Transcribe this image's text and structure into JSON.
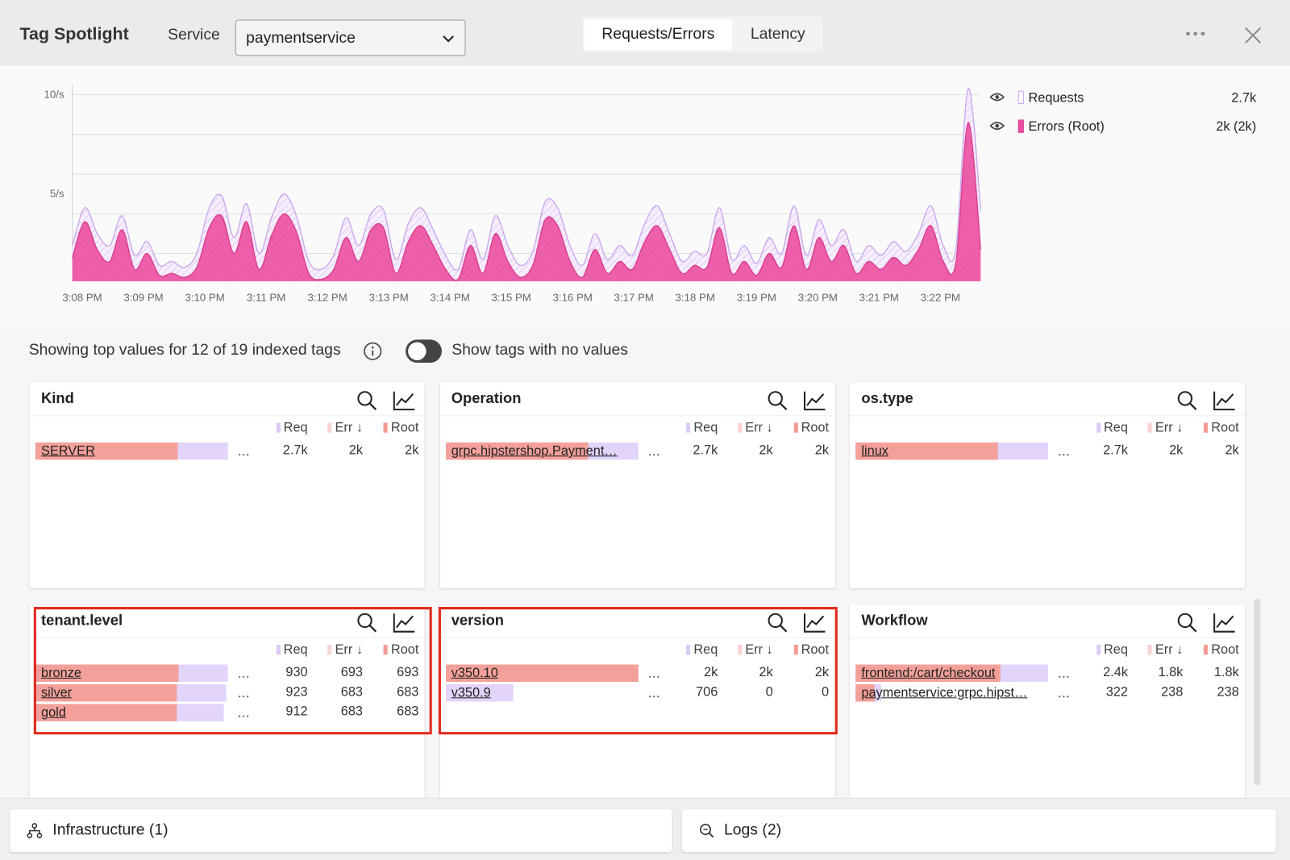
{
  "header": {
    "title": "Tag Spotlight",
    "service_label": "Service",
    "service_value": "paymentservice",
    "tabs": [
      "Requests/Errors",
      "Latency"
    ]
  },
  "chart_data": {
    "type": "area",
    "series": [
      {
        "name": "Requests",
        "color": "#c9a6f0",
        "summary": "2.7k",
        "values": [
          2.4,
          4.3,
          3.0,
          2.4,
          3.9,
          1.9,
          2.6,
          1.4,
          1.6,
          1.3,
          2.0,
          4.3,
          4.9,
          2.8,
          4.5,
          2.0,
          3.8,
          5.0,
          3.9,
          1.6,
          1.2,
          1.9,
          3.8,
          2.4,
          4.0,
          4.2,
          1.7,
          3.5,
          4.3,
          3.2,
          1.9,
          1.2,
          3.2,
          1.7,
          3.9,
          2.4,
          1.4,
          2.1,
          4.6,
          4.3,
          2.4,
          1.4,
          3.0,
          1.7,
          2.4,
          1.9,
          3.5,
          4.4,
          3.0,
          1.6,
          2.1,
          2.0,
          4.3,
          1.7,
          2.4,
          1.5,
          2.8,
          2.0,
          4.4,
          1.9,
          3.7,
          2.4,
          3.2,
          1.6,
          2.4,
          1.9,
          2.6,
          2.1,
          3.0,
          4.4,
          2.4,
          2.2,
          10.3,
          4.2
        ]
      },
      {
        "name": "Errors (Root)",
        "color": "#ec4f9f",
        "summary": "2k (2k)",
        "values": [
          1.8,
          3.6,
          2.2,
          1.6,
          3.2,
          1.2,
          2.0,
          0.9,
          1.0,
          0.8,
          1.3,
          3.3,
          3.9,
          2.0,
          3.6,
          1.2,
          2.9,
          4.0,
          3.1,
          1.0,
          0.7,
          1.2,
          2.8,
          1.6,
          3.2,
          3.3,
          1.0,
          2.6,
          3.4,
          2.4,
          1.2,
          0.7,
          2.4,
          1.0,
          3.0,
          1.6,
          0.8,
          1.4,
          3.7,
          3.4,
          1.6,
          0.8,
          2.2,
          1.0,
          1.6,
          1.2,
          2.6,
          3.4,
          2.2,
          1.0,
          1.4,
          1.3,
          3.3,
          1.0,
          1.6,
          0.9,
          2.0,
          1.3,
          3.4,
          1.2,
          2.8,
          1.6,
          2.4,
          1.0,
          1.6,
          1.2,
          1.8,
          1.4,
          2.2,
          3.4,
          1.6,
          1.5,
          8.6,
          2.2
        ]
      }
    ],
    "x_labels": [
      "3:08 PM",
      "3:09 PM",
      "3:10 PM",
      "3:11 PM",
      "3:12 PM",
      "3:13 PM",
      "3:14 PM",
      "3:15 PM",
      "3:16 PM",
      "3:17 PM",
      "3:18 PM",
      "3:19 PM",
      "3:20 PM",
      "3:21 PM",
      "3:22 PM"
    ],
    "ylim": [
      0.6,
      10.5
    ],
    "yticks": [
      {
        "value": 10,
        "label": "10/s"
      },
      {
        "value": 5,
        "label": "5/s"
      }
    ],
    "grid": [
      2,
      4,
      6,
      8,
      10
    ]
  },
  "tags": {
    "summary": "Showing top values for 12 of 19 indexed tags",
    "toggle_label": "Show tags with no values",
    "columns": [
      "Req",
      "Err ↓",
      "Root"
    ],
    "panels": [
      {
        "title": "Kind",
        "rows": [
          {
            "label": "SERVER",
            "req": {
              "value": 2700,
              "label": "2.7k"
            },
            "err": {
              "value": 2000,
              "label": "2k"
            },
            "root": {
              "value": 2000,
              "label": "2k"
            }
          }
        ]
      },
      {
        "title": "Operation",
        "rows": [
          {
            "label": "grpc.hipstershop.Payment…",
            "req": {
              "value": 2700,
              "label": "2.7k"
            },
            "err": {
              "value": 2000,
              "label": "2k"
            },
            "root": {
              "value": 2000,
              "label": "2k"
            }
          }
        ]
      },
      {
        "title": "os.type",
        "rows": [
          {
            "label": "linux",
            "req": {
              "value": 2700,
              "label": "2.7k"
            },
            "err": {
              "value": 2000,
              "label": "2k"
            },
            "root": {
              "value": 2000,
              "label": "2k"
            }
          }
        ]
      },
      {
        "title": "tenant.level",
        "rows": [
          {
            "label": "bronze",
            "req": 930,
            "err": 693,
            "root": 693
          },
          {
            "label": "silver",
            "req": 923,
            "err": 683,
            "root": 683
          },
          {
            "label": "gold",
            "req": 912,
            "err": 683,
            "root": 683
          }
        ]
      },
      {
        "title": "version",
        "rows": [
          {
            "label": "v350.10",
            "req": {
              "value": 2000,
              "label": "2k"
            },
            "err": {
              "value": 2000,
              "label": "2k"
            },
            "root": {
              "value": 2000,
              "label": "2k"
            }
          },
          {
            "label": "v350.9",
            "req": 706,
            "err": 0,
            "root": 0
          }
        ]
      },
      {
        "title": "Workflow",
        "rows": [
          {
            "label": "frontend:/cart/checkout",
            "req": {
              "value": 2400,
              "label": "2.4k"
            },
            "err": {
              "value": 1800,
              "label": "1.8k"
            },
            "root": {
              "value": 1800,
              "label": "1.8k"
            }
          },
          {
            "label": "paymentservice:grpc.hipst…",
            "req": 322,
            "err": 238,
            "root": 238
          }
        ]
      }
    ]
  },
  "footer": {
    "items": [
      "Infrastructure (1)",
      "Logs (2)"
    ]
  }
}
